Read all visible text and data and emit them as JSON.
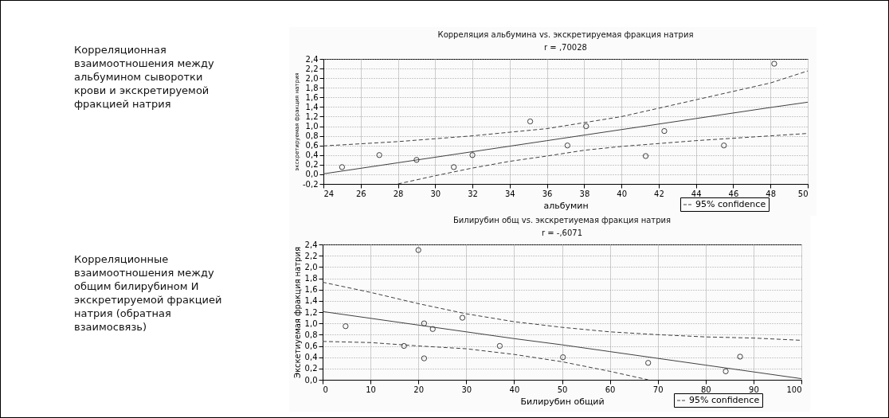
{
  "chart_data": [
    {
      "type": "scatter",
      "title": "Корреляция альбумина vs. экскретируемая фракция натрия",
      "subtitle": "r = ,70028",
      "xlabel": "альбумин",
      "ylabel": "экскретируемая фракция натрия",
      "annotations": [
        "Корреляционная взаимоотношения между альбумином сыворотки крови и экскретируемой фракцией натрия"
      ],
      "xlim": [
        24,
        50
      ],
      "xticks": [
        24,
        26,
        28,
        30,
        32,
        34,
        36,
        38,
        40,
        42,
        44,
        46,
        48,
        50
      ],
      "ylim": [
        -0.2,
        2.4
      ],
      "yticks": [
        {
          "value": -0.2,
          "label": "-0,2"
        },
        {
          "value": 0,
          "label": "0,0"
        },
        {
          "value": 0.2,
          "label": "0,2"
        },
        {
          "value": 0.4,
          "label": "0,4"
        },
        {
          "value": 0.6,
          "label": "0,6"
        },
        {
          "value": 0.8,
          "label": "0,8"
        },
        {
          "value": 1,
          "label": "1,0"
        },
        {
          "value": 1.2,
          "label": "1,2"
        },
        {
          "value": 1.4,
          "label": "1,4"
        },
        {
          "value": 1.6,
          "label": "1,6"
        },
        {
          "value": 1.8,
          "label": "1,8"
        },
        {
          "value": 2,
          "label": "2,0"
        },
        {
          "value": 2.2,
          "label": "2,2"
        },
        {
          "value": 2.4,
          "label": "2,4"
        }
      ],
      "grid": true,
      "legend": "bottom right",
      "series": [
        {
          "type": "scatter",
          "marker": "circle",
          "color": "#404040",
          "x": [
            25,
            27,
            29,
            31,
            32,
            35.1,
            37.1,
            38.1,
            41.3,
            42.3,
            45.5,
            48.2
          ],
          "values": [
            0.15,
            0.4,
            0.3,
            0.15,
            0.4,
            1.1,
            0.6,
            1.0,
            0.38,
            0.9,
            0.6,
            2.3
          ]
        },
        {
          "type": "line",
          "color": "#404040",
          "line_style": "solid",
          "x": [
            24,
            28,
            32,
            36,
            40,
            44,
            48,
            50
          ],
          "values": [
            0.01,
            0.24,
            0.47,
            0.7,
            0.93,
            1.16,
            1.39,
            1.5
          ]
        },
        {
          "type": "line",
          "name": "95% confidence",
          "color": "#404040",
          "line_style": "dashed",
          "x": [
            24,
            28,
            32,
            36,
            40,
            44,
            48,
            50
          ],
          "values": [
            0.59,
            0.68,
            0.8,
            0.95,
            1.2,
            1.55,
            1.9,
            2.15
          ]
        },
        {
          "type": "line",
          "color": "#404040",
          "line_style": "dashed",
          "x": [
            28,
            30,
            32,
            34,
            36,
            38,
            40,
            44,
            48,
            50
          ],
          "values": [
            -0.2,
            -0.03,
            0.13,
            0.27,
            0.38,
            0.5,
            0.58,
            0.7,
            0.8,
            0.85
          ]
        }
      ]
    },
    {
      "type": "scatter",
      "title": "Билирубин общ vs. экскретиуемая фракция натрия",
      "subtitle": "r = -,6071",
      "xlabel": "Билирубин общий",
      "ylabel": "Экскетиуемая фракция натрия",
      "annotations": [
        "Корреляционные взаимоотношения между общим билирубином И экскретируемой фракцией натрия (обратная взаимосвязь)"
      ],
      "xlim": [
        0,
        100
      ],
      "xticks": [
        0,
        10,
        20,
        30,
        40,
        50,
        60,
        70,
        80,
        90,
        100
      ],
      "ylim": [
        0,
        2.4
      ],
      "yticks": [
        {
          "value": 0,
          "label": "0,0"
        },
        {
          "value": 0.2,
          "label": "0,2"
        },
        {
          "value": 0.4,
          "label": "0,4"
        },
        {
          "value": 0.6,
          "label": "0,6"
        },
        {
          "value": 0.8,
          "label": "0,8"
        },
        {
          "value": 1,
          "label": "1,0"
        },
        {
          "value": 1.2,
          "label": "1,2"
        },
        {
          "value": 1.4,
          "label": "1,4"
        },
        {
          "value": 1.6,
          "label": "1,6"
        },
        {
          "value": 1.8,
          "label": "1,8"
        },
        {
          "value": 2,
          "label": "2,0"
        },
        {
          "value": 2.2,
          "label": "2,2"
        },
        {
          "value": 2.4,
          "label": "2,4"
        }
      ],
      "grid": true,
      "legend": "bottom right",
      "series": [
        {
          "type": "scatter",
          "marker": "circle",
          "color": "#404040",
          "x": [
            4.8,
            17,
            20,
            21.2,
            21.2,
            23,
            29.2,
            37,
            50.2,
            68,
            84.2,
            87.2
          ],
          "values": [
            0.95,
            0.6,
            2.3,
            1.0,
            0.38,
            0.9,
            1.1,
            0.6,
            0.4,
            0.3,
            0.15,
            0.41
          ]
        },
        {
          "type": "line",
          "color": "#404040",
          "line_style": "solid",
          "x": [
            0,
            10,
            20,
            30,
            40,
            50,
            60,
            70,
            80,
            90,
            100
          ],
          "values": [
            1.21,
            1.09,
            0.97,
            0.85,
            0.73,
            0.62,
            0.5,
            0.38,
            0.26,
            0.14,
            0.02
          ]
        },
        {
          "type": "line",
          "name": "95% confidence",
          "color": "#404040",
          "line_style": "dashed",
          "x": [
            0,
            10,
            20,
            30,
            40,
            50,
            60,
            70,
            80,
            90,
            100
          ],
          "values": [
            1.73,
            1.55,
            1.35,
            1.17,
            1.03,
            0.93,
            0.85,
            0.8,
            0.76,
            0.74,
            0.7
          ]
        },
        {
          "type": "line",
          "color": "#404040",
          "line_style": "dashed",
          "x": [
            0,
            10,
            20,
            30,
            40,
            50,
            60,
            68
          ],
          "values": [
            0.68,
            0.66,
            0.6,
            0.55,
            0.45,
            0.32,
            0.15,
            0.0
          ]
        }
      ]
    }
  ]
}
